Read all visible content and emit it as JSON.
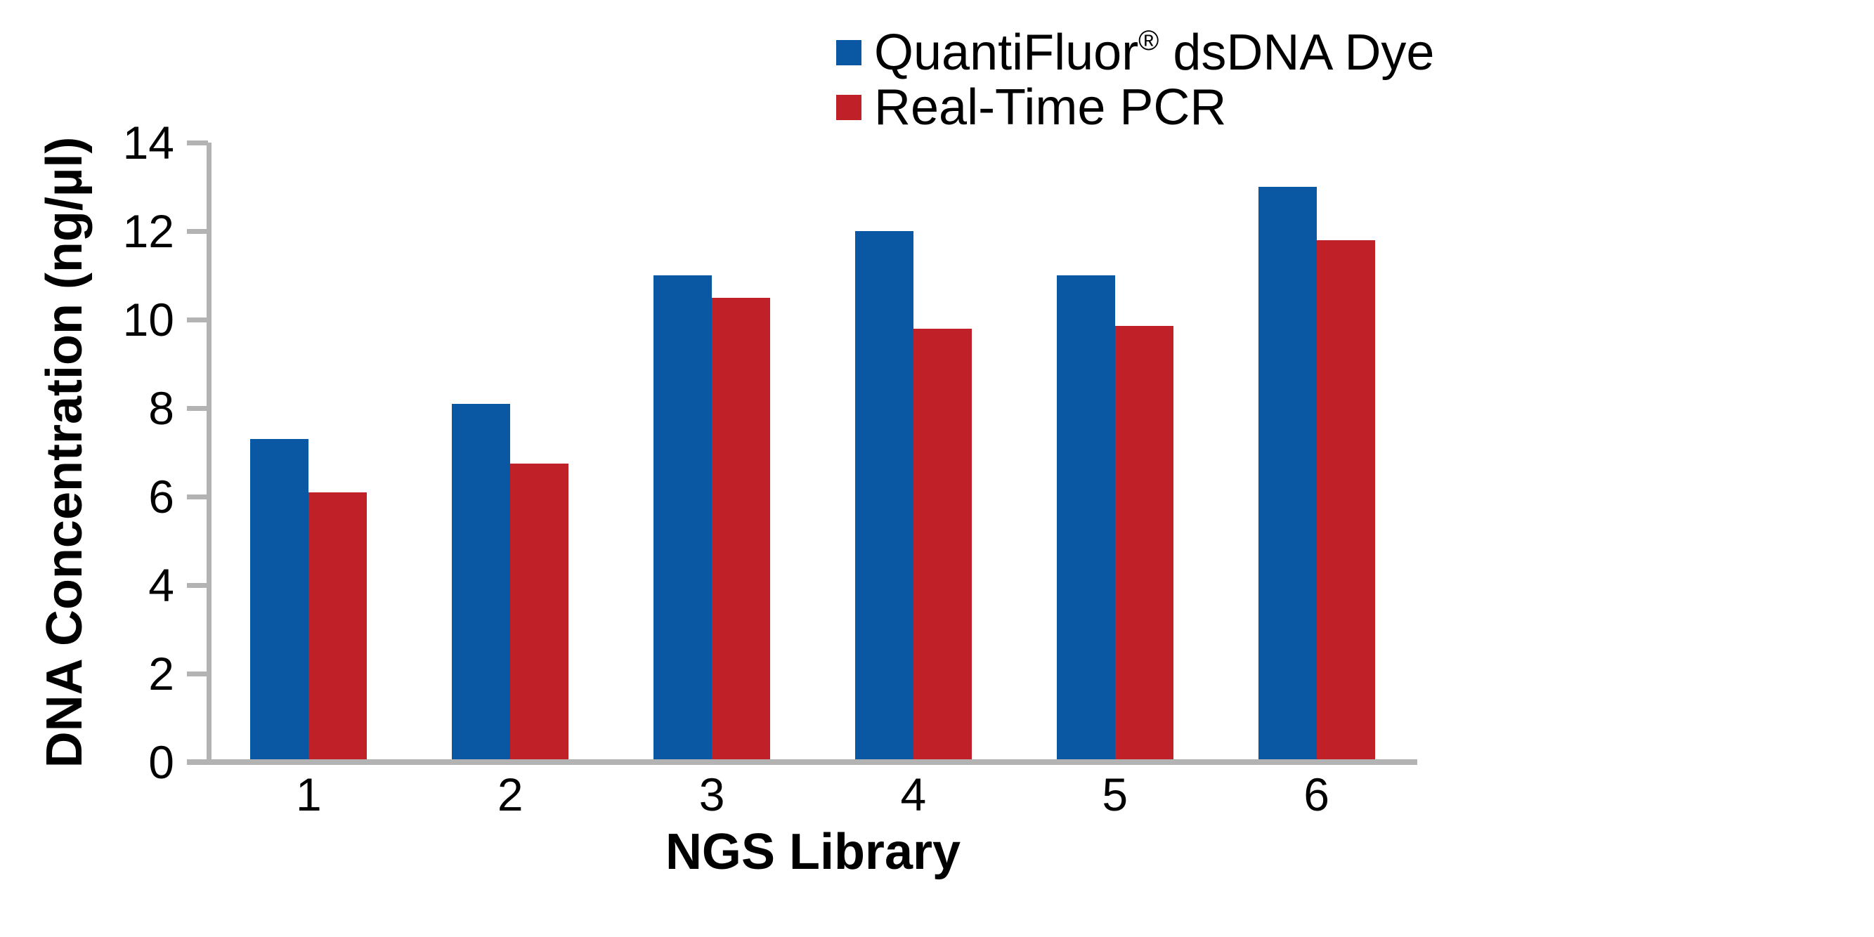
{
  "chart_data": {
    "type": "bar",
    "title": "",
    "xlabel": "NGS Library",
    "ylabel": "DNA Concentration (ng/µl)",
    "categories": [
      "1",
      "2",
      "3",
      "4",
      "5",
      "6"
    ],
    "series": [
      {
        "name": "QuantiFluor® dsDNA Dye",
        "color": "#0A57A4",
        "values": [
          7.3,
          8.1,
          11.0,
          12.0,
          11.0,
          13.0
        ]
      },
      {
        "name": "Real-Time PCR",
        "color": "#C02128",
        "values": [
          6.1,
          6.75,
          10.5,
          9.8,
          9.85,
          11.8
        ]
      }
    ],
    "ylim": [
      0,
      14
    ],
    "yticks": [
      0,
      2,
      4,
      6,
      8,
      10,
      12,
      14
    ],
    "grid": false,
    "legend_position": "top-right",
    "axis_color": "#B3B3B3",
    "text_color": "#000000",
    "background": "#FFFFFF"
  }
}
